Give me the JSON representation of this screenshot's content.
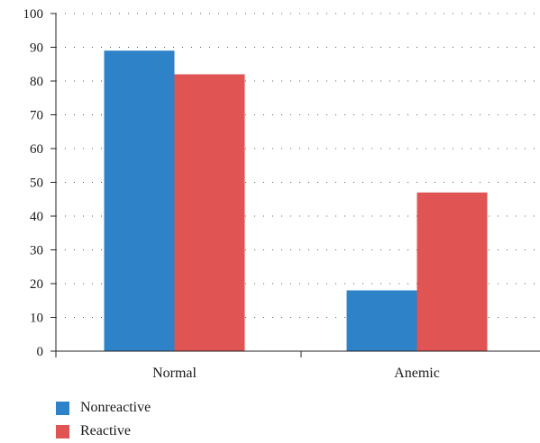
{
  "chart_data": {
    "type": "bar",
    "categories": [
      "Normal",
      "Anemic"
    ],
    "series": [
      {
        "name": "Nonreactive",
        "values": [
          89,
          18
        ],
        "color": "#2e82c8"
      },
      {
        "name": "Reactive",
        "values": [
          82,
          47
        ],
        "color": "#e05454"
      }
    ],
    "ylim": [
      0,
      100
    ],
    "yticks": [
      "0",
      "10",
      "20",
      "30",
      "40",
      "50",
      "60",
      "70",
      "80",
      "90",
      "100"
    ],
    "grid": true,
    "legend_position": "bottom-left"
  }
}
